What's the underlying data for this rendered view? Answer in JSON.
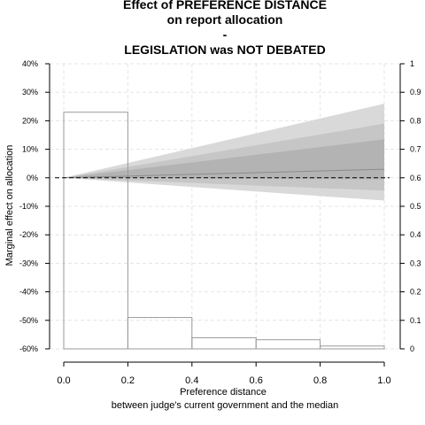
{
  "chart_data": {
    "type": "line",
    "title_lines": [
      "Effect of PREFERENCE DISTANCE",
      "on report allocation",
      "-",
      "LEGISLATION was NOT DEBATED"
    ],
    "xlabel": "Preference distance",
    "xlabel_sub": "between judge's current government and the median",
    "ylabel": "Marginal effect on allocation",
    "xlim": [
      0.0,
      1.0
    ],
    "ylim": [
      -0.6,
      0.4
    ],
    "y2lim": [
      0,
      1
    ],
    "x_ticks": [
      "0.0",
      "0.2",
      "0.4",
      "0.6",
      "0.8",
      "1.0"
    ],
    "y_ticks": [
      "-60%",
      "-50%",
      "-40%",
      "-30%",
      "-20%",
      "-10%",
      "0%",
      "10%",
      "20%",
      "30%",
      "40%"
    ],
    "y2_ticks": [
      "0",
      "0.1",
      "0.2",
      "0.3",
      "0.4",
      "0.5",
      "0.6",
      "0.7",
      "0.8",
      "0.9",
      "1"
    ],
    "grid": true,
    "reference_line": {
      "y": 0.0,
      "style": "dashed"
    },
    "effect": {
      "x": [
        0.0,
        1.0
      ],
      "estimate": [
        0.0,
        0.03
      ],
      "band_outer": {
        "lower": [
          0.0,
          -0.08
        ],
        "upper": [
          0.0,
          0.26
        ]
      },
      "band_middle": {
        "lower": [
          0.0,
          -0.045
        ],
        "upper": [
          0.0,
          0.19
        ]
      },
      "band_inner": {
        "lower": [
          0.0,
          -0.005
        ],
        "upper": [
          0.0,
          0.135
        ]
      }
    },
    "histogram": {
      "bins": [
        [
          0.0,
          0.2
        ],
        [
          0.2,
          0.4
        ],
        [
          0.4,
          0.6
        ],
        [
          0.6,
          0.8
        ],
        [
          0.8,
          1.0
        ]
      ],
      "density": [
        0.83,
        0.11,
        0.039,
        0.032,
        0.01
      ]
    },
    "colors": {
      "band_outer": "#d9d9d9",
      "band_middle": "#c6c6c6",
      "band_inner": "#b3b3b3",
      "histogram_stroke": "#9a9a9a",
      "grid": "#e4e4e4",
      "axis": "#000000"
    }
  }
}
